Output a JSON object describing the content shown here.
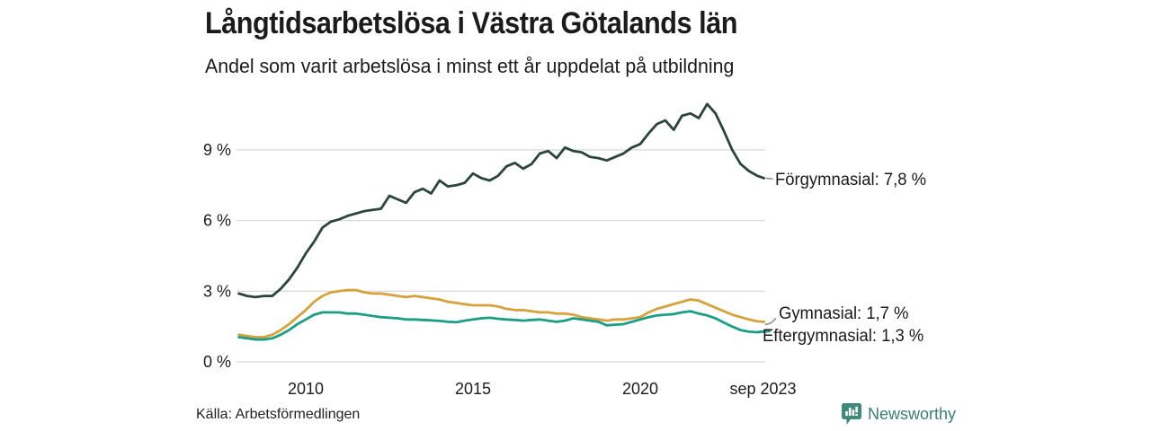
{
  "header": {
    "title": "Långtidsarbetslösa i Västra Götalands län",
    "subtitle": "Andel som varit arbetslösa i minst ett år uppdelat på utbildning"
  },
  "footer": {
    "source": "Källa: Arbetsförmedlingen",
    "brand": "Newsworthy"
  },
  "colors": {
    "forgymnasial": "#2a453e",
    "gymnasial": "#d7a13b",
    "eftergymnasial": "#1a9e85",
    "grid": "#dcdcdc",
    "text": "#1c1c1c",
    "connector": "#8a8a8a",
    "brand_teal": "#3a7f73",
    "logo_bubble": "#3f8a7b"
  },
  "chart_data": {
    "type": "line",
    "title": "Långtidsarbetslösa i Västra Götalands län",
    "subtitle": "Andel som varit arbetslösa i minst ett år uppdelat på utbildning",
    "unit": "%",
    "grid": "horizontal",
    "legend_position": "right-end-labels",
    "x_range": [
      2008,
      2023.75
    ],
    "y_range": [
      0,
      11.2
    ],
    "x_ticks": [
      {
        "value": 2010,
        "label": "2010"
      },
      {
        "value": 2015,
        "label": "2015"
      },
      {
        "value": 2020,
        "label": "2020"
      },
      {
        "value": 2023.67,
        "label": "sep 2023"
      }
    ],
    "y_ticks": [
      {
        "value": 0,
        "label": "0 %"
      },
      {
        "value": 3,
        "label": "3 %"
      },
      {
        "value": 6,
        "label": "6 %"
      },
      {
        "value": 9,
        "label": "9 %"
      }
    ],
    "x": [
      2008.0,
      2008.25,
      2008.5,
      2008.75,
      2009.0,
      2009.25,
      2009.5,
      2009.75,
      2010.0,
      2010.25,
      2010.5,
      2010.75,
      2011.0,
      2011.25,
      2011.5,
      2011.75,
      2012.0,
      2012.25,
      2012.5,
      2012.75,
      2013.0,
      2013.25,
      2013.5,
      2013.75,
      2014.0,
      2014.25,
      2014.5,
      2014.75,
      2015.0,
      2015.25,
      2015.5,
      2015.75,
      2016.0,
      2016.25,
      2016.5,
      2016.75,
      2017.0,
      2017.25,
      2017.5,
      2017.75,
      2018.0,
      2018.25,
      2018.5,
      2018.75,
      2019.0,
      2019.25,
      2019.5,
      2019.75,
      2020.0,
      2020.25,
      2020.5,
      2020.75,
      2021.0,
      2021.25,
      2021.5,
      2021.75,
      2022.0,
      2022.25,
      2022.5,
      2022.75,
      2023.0,
      2023.25,
      2023.5,
      2023.7
    ],
    "series": [
      {
        "name": "Förgymnasial",
        "color": "#2a453e",
        "end_label": "Förgymnasial: 7,8 %",
        "last_value": "7,8 %",
        "values": [
          2.9,
          2.8,
          2.75,
          2.8,
          2.8,
          3.1,
          3.5,
          4.0,
          4.6,
          5.1,
          5.7,
          5.95,
          6.05,
          6.2,
          6.3,
          6.4,
          6.45,
          6.5,
          7.05,
          6.9,
          6.75,
          7.2,
          7.35,
          7.15,
          7.7,
          7.45,
          7.5,
          7.6,
          8.0,
          7.8,
          7.7,
          7.9,
          8.3,
          8.45,
          8.2,
          8.4,
          8.85,
          8.95,
          8.65,
          9.1,
          8.95,
          8.9,
          8.7,
          8.65,
          8.55,
          8.7,
          8.85,
          9.1,
          9.25,
          9.7,
          10.1,
          10.25,
          9.85,
          10.45,
          10.55,
          10.35,
          10.95,
          10.55,
          9.8,
          9.0,
          8.4,
          8.1,
          7.9,
          7.8
        ]
      },
      {
        "name": "Gymnasial",
        "color": "#d7a13b",
        "end_label": "Gymnasial: 1,7 %",
        "last_value": "1,7 %",
        "values": [
          1.15,
          1.1,
          1.05,
          1.05,
          1.15,
          1.35,
          1.6,
          1.9,
          2.2,
          2.55,
          2.8,
          2.95,
          3.0,
          3.05,
          3.05,
          2.95,
          2.9,
          2.9,
          2.85,
          2.8,
          2.75,
          2.8,
          2.75,
          2.7,
          2.65,
          2.55,
          2.5,
          2.45,
          2.4,
          2.4,
          2.4,
          2.35,
          2.25,
          2.2,
          2.2,
          2.15,
          2.1,
          2.1,
          2.05,
          2.05,
          2.0,
          1.9,
          1.85,
          1.8,
          1.75,
          1.8,
          1.8,
          1.85,
          1.9,
          2.1,
          2.25,
          2.35,
          2.45,
          2.55,
          2.65,
          2.6,
          2.45,
          2.3,
          2.15,
          2.0,
          1.9,
          1.8,
          1.72,
          1.7
        ]
      },
      {
        "name": "Eftergymnasial",
        "color": "#1a9e85",
        "end_label": "Eftergymnasial: 1,3 %",
        "last_value": "1,3 %",
        "values": [
          1.05,
          1.0,
          0.95,
          0.95,
          1.0,
          1.15,
          1.35,
          1.6,
          1.8,
          2.0,
          2.1,
          2.1,
          2.1,
          2.05,
          2.05,
          2.0,
          1.95,
          1.9,
          1.87,
          1.85,
          1.8,
          1.8,
          1.78,
          1.76,
          1.74,
          1.7,
          1.68,
          1.75,
          1.8,
          1.85,
          1.87,
          1.83,
          1.8,
          1.78,
          1.75,
          1.78,
          1.8,
          1.75,
          1.7,
          1.75,
          1.85,
          1.8,
          1.75,
          1.7,
          1.55,
          1.58,
          1.6,
          1.7,
          1.8,
          1.9,
          1.97,
          2.0,
          2.03,
          2.1,
          2.15,
          2.05,
          1.97,
          1.85,
          1.67,
          1.5,
          1.35,
          1.28,
          1.26,
          1.3
        ]
      }
    ]
  }
}
